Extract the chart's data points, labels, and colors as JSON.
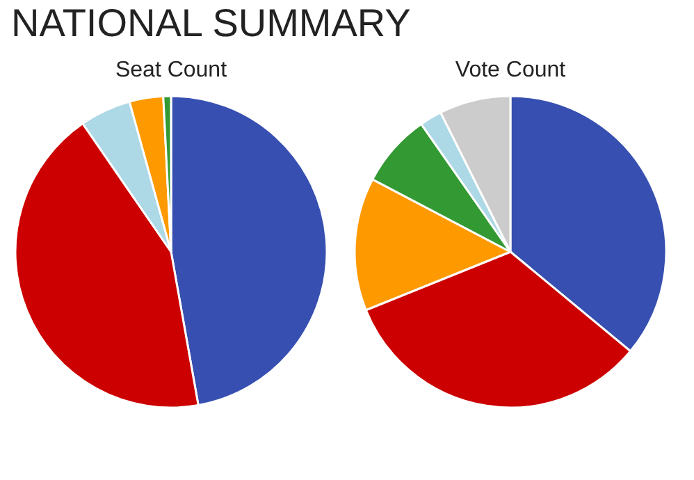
{
  "chart_data": [
    {
      "type": "pie",
      "title": "Seat Count",
      "annotations": [
        "NATIONAL SUMMARY"
      ],
      "categories": [
        null,
        null,
        null,
        null,
        null
      ],
      "values": [
        47.2,
        43.2,
        5.3,
        3.5,
        0.8
      ],
      "colors": [
        "#364fb0",
        "#cc0000",
        "#add8e6",
        "#ff9900",
        "#339933"
      ]
    },
    {
      "type": "pie",
      "title": "Vote Count",
      "categories": [
        null,
        null,
        null,
        null,
        null,
        null
      ],
      "values": [
        36.0,
        32.9,
        13.8,
        7.6,
        2.3,
        7.4
      ],
      "colors": [
        "#364fb0",
        "#cc0000",
        "#ff9900",
        "#339933",
        "#add8e6",
        "#cccccc"
      ]
    }
  ]
}
